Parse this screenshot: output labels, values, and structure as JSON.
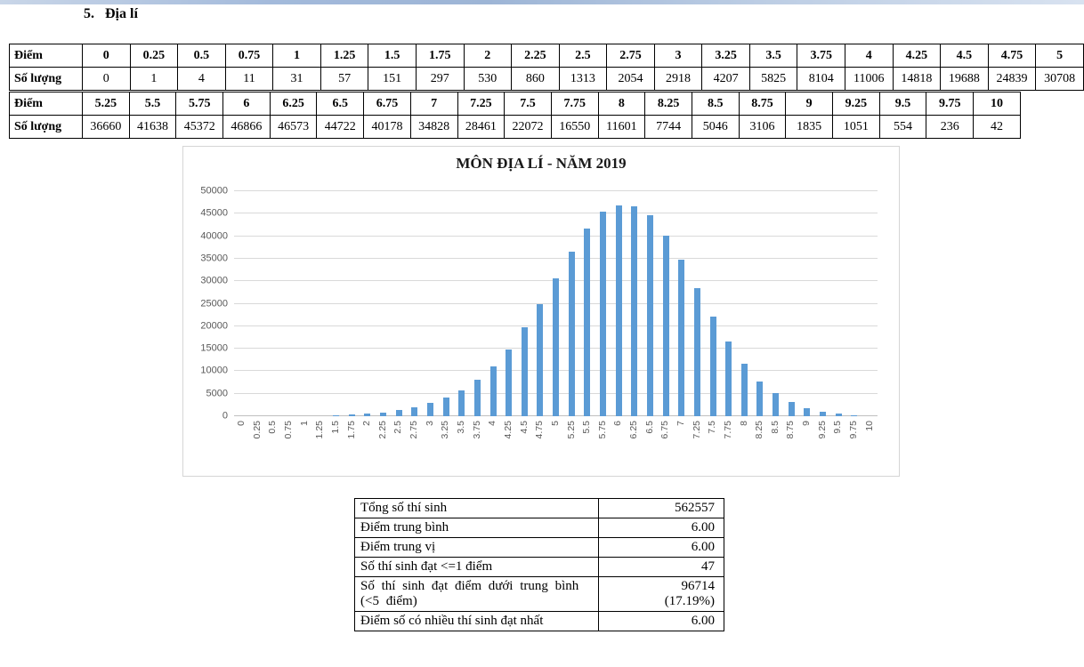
{
  "page": {
    "heading_number": "5.",
    "heading_text": "Địa lí"
  },
  "score_tables": {
    "row_label_score": "Điểm",
    "row_label_count": "Số lượng",
    "table1": {
      "scores": [
        "0",
        "0.25",
        "0.5",
        "0.75",
        "1",
        "1.25",
        "1.5",
        "1.75",
        "2",
        "2.25",
        "2.5",
        "2.75",
        "3",
        "3.25",
        "3.5",
        "3.75",
        "4",
        "4.25",
        "4.5",
        "4.75",
        "5"
      ],
      "counts": [
        "0",
        "1",
        "4",
        "11",
        "31",
        "57",
        "151",
        "297",
        "530",
        "860",
        "1313",
        "2054",
        "2918",
        "4207",
        "5825",
        "8104",
        "11006",
        "14818",
        "19688",
        "24839",
        "30708"
      ]
    },
    "table2": {
      "scores": [
        "5.25",
        "5.5",
        "5.75",
        "6",
        "6.25",
        "6.5",
        "6.75",
        "7",
        "7.25",
        "7.5",
        "7.75",
        "8",
        "8.25",
        "8.5",
        "8.75",
        "9",
        "9.25",
        "9.5",
        "9.75",
        "10"
      ],
      "counts": [
        "36660",
        "41638",
        "45372",
        "46866",
        "46573",
        "44722",
        "40178",
        "34828",
        "28461",
        "22072",
        "16550",
        "11601",
        "7744",
        "5046",
        "3106",
        "1835",
        "1051",
        "554",
        "236",
        "42"
      ]
    }
  },
  "chart_data": {
    "type": "bar",
    "title": "MÔN ĐỊA LÍ - NĂM 2019",
    "categories": [
      "0",
      "0.25",
      "0.5",
      "0.75",
      "1",
      "1.25",
      "1.5",
      "1.75",
      "2",
      "2.25",
      "2.5",
      "2.75",
      "3",
      "3.25",
      "3.5",
      "3.75",
      "4",
      "4.25",
      "4.5",
      "4.75",
      "5",
      "5.25",
      "5.5",
      "5.75",
      "6",
      "6.25",
      "6.5",
      "6.75",
      "7",
      "7.25",
      "7.5",
      "7.75",
      "8",
      "8.25",
      "8.5",
      "8.75",
      "9",
      "9.25",
      "9.5",
      "9.75",
      "10"
    ],
    "values": [
      0,
      1,
      4,
      11,
      31,
      57,
      151,
      297,
      530,
      860,
      1313,
      2054,
      2918,
      4207,
      5825,
      8104,
      11006,
      14818,
      19688,
      24839,
      30708,
      36660,
      41638,
      45372,
      46866,
      46573,
      44722,
      40178,
      34828,
      28461,
      22072,
      16550,
      11601,
      7744,
      5046,
      3106,
      1835,
      1051,
      554,
      236,
      42
    ],
    "xlabel": "",
    "ylabel": "",
    "ylim": [
      0,
      50000
    ],
    "ytick_step": 5000,
    "grid": true,
    "legend_position": "none",
    "bar_color": "#5B9BD5",
    "gridline_color": "#d9d9d9"
  },
  "summary_table": {
    "rows": [
      {
        "label": "Tổng số thí sinh",
        "value": "562557"
      },
      {
        "label": "Điểm trung bình",
        "value": "6.00"
      },
      {
        "label": "Điểm trung vị",
        "value": "6.00"
      },
      {
        "label": "Số thí sinh đạt <=1 điểm",
        "value": "47"
      },
      {
        "label": "Số thí sinh đạt điểm dưới trung bình\n(<5 điểm)",
        "value": "96714\n(17.19%)"
      },
      {
        "label": "Điểm số có nhiều thí sinh đạt nhất",
        "value": "6.00"
      }
    ]
  }
}
